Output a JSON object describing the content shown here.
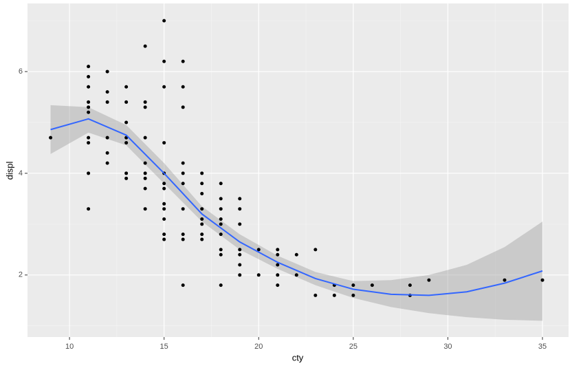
{
  "chart_data": {
    "type": "scatter",
    "x_label": "cty",
    "y_label": "displ",
    "x": [
      9,
      11,
      11,
      11,
      11,
      11,
      11,
      11,
      11,
      11,
      11,
      12,
      12,
      12,
      12,
      12,
      12,
      13,
      13,
      13,
      13,
      13,
      13,
      13,
      14,
      14,
      14,
      14,
      14,
      14,
      14,
      14,
      14,
      15,
      15,
      15,
      15,
      15,
      15,
      15,
      15,
      15,
      15,
      15,
      15,
      16,
      16,
      16,
      16,
      16,
      16,
      16,
      16,
      16,
      16,
      17,
      17,
      17,
      17,
      17,
      17,
      17,
      17,
      18,
      18,
      18,
      18,
      18,
      18,
      18,
      18,
      18,
      19,
      19,
      19,
      19,
      19,
      19,
      19,
      20,
      20,
      21,
      21,
      21,
      21,
      21,
      22,
      22,
      23,
      23,
      24,
      24,
      25,
      25,
      26,
      28,
      28,
      29,
      33,
      35
    ],
    "y": [
      4.7,
      6.1,
      5.9,
      5.7,
      5.4,
      5.3,
      5.2,
      4.7,
      4.6,
      4.0,
      3.3,
      6.0,
      5.6,
      5.4,
      4.7,
      4.4,
      4.2,
      5.7,
      5.4,
      5.0,
      4.7,
      4.6,
      4.0,
      3.9,
      6.5,
      5.4,
      5.3,
      4.7,
      4.2,
      4.0,
      3.9,
      3.7,
      3.3,
      7.0,
      6.2,
      5.7,
      4.6,
      4.0,
      3.8,
      3.7,
      3.4,
      3.3,
      3.1,
      2.8,
      2.7,
      6.2,
      5.7,
      5.3,
      4.2,
      4.0,
      3.8,
      3.3,
      2.8,
      2.7,
      1.8,
      4.0,
      3.8,
      3.6,
      3.3,
      3.1,
      3.0,
      2.8,
      2.7,
      3.8,
      3.5,
      3.3,
      3.1,
      3.0,
      2.8,
      2.5,
      2.4,
      1.8,
      3.5,
      3.3,
      3.0,
      2.5,
      2.4,
      2.2,
      2.0,
      2.5,
      2.0,
      2.5,
      2.4,
      2.2,
      2.0,
      1.8,
      2.4,
      2.0,
      2.5,
      1.6,
      1.8,
      1.6,
      1.8,
      1.6,
      1.8,
      1.8,
      1.6,
      1.9,
      1.9,
      1.9
    ],
    "point_color": "#000000",
    "smooth": {
      "color": "#3366ff",
      "band_color": "#999999",
      "x": [
        9,
        11,
        13,
        15,
        17,
        19,
        21,
        23,
        25,
        27,
        29,
        31,
        33,
        35
      ],
      "values": [
        4.86,
        5.07,
        4.75,
        4.0,
        3.2,
        2.65,
        2.25,
        1.93,
        1.72,
        1.62,
        1.6,
        1.67,
        1.84,
        2.08
      ],
      "upper": [
        5.34,
        5.3,
        4.95,
        4.2,
        3.35,
        2.8,
        2.38,
        2.06,
        1.88,
        1.9,
        2.0,
        2.2,
        2.55,
        3.05
      ],
      "lower": [
        4.38,
        4.8,
        4.55,
        3.8,
        3.05,
        2.5,
        2.12,
        1.8,
        1.55,
        1.37,
        1.25,
        1.17,
        1.12,
        1.1
      ]
    },
    "xlim": [
      7.78,
      36.38
    ],
    "ylim": [
      0.78,
      7.34
    ],
    "xticks": [
      10,
      15,
      20,
      25,
      30,
      35
    ],
    "yticks": [
      2,
      4,
      6
    ],
    "xminor": [
      12.5,
      17.5,
      22.5,
      27.5,
      32.5
    ],
    "yminor": [
      1,
      3,
      5,
      7
    ],
    "grid": true
  }
}
